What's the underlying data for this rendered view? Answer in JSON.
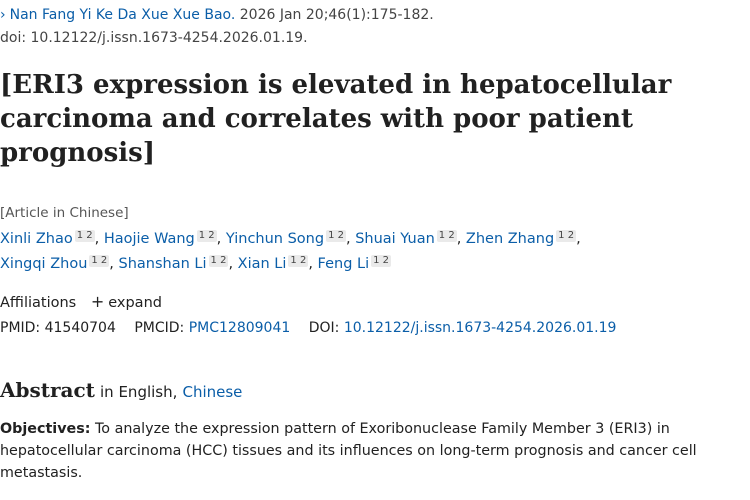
{
  "citation": {
    "journal": "Nan Fang Yi Ke Da Xue Xue Bao.",
    "date_volume": " 2026 Jan 20;46(1):175-182.",
    "doi_line": "doi: 10.12122/j.issn.1673-4254.2026.01.19."
  },
  "title": "[ERI3 expression is elevated in hepatocellular carcinoma and correlates with poor patient prognosis]",
  "article_type": "[Article in Chinese]",
  "authors": [
    {
      "name": "Xinli Zhao",
      "sup": "1 2",
      "sep": ","
    },
    {
      "name": "Haojie Wang",
      "sup": "1 2",
      "sep": ","
    },
    {
      "name": "Yinchun Song",
      "sup": "1 2",
      "sep": ","
    },
    {
      "name": "Shuai Yuan",
      "sup": "1 2",
      "sep": ","
    },
    {
      "name": "Zhen Zhang",
      "sup": "1 2",
      "sep": ","
    },
    {
      "name": "Xingqi Zhou",
      "sup": "1 2",
      "sep": ","
    },
    {
      "name": "Shanshan Li",
      "sup": "1 2",
      "sep": ","
    },
    {
      "name": "Xian Li",
      "sup": "1 2",
      "sep": ","
    },
    {
      "name": "Feng Li",
      "sup": "1 2",
      "sep": ""
    }
  ],
  "affiliations": {
    "label": "Affiliations",
    "expand_label": "expand"
  },
  "identifiers": {
    "pmid_label": "PMID:",
    "pmid": "41540704",
    "pmcid_label": "PMCID:",
    "pmcid": "PMC12809041",
    "doi_label": "DOI:",
    "doi": "10.12122/j.issn.1673-4254.2026.01.19"
  },
  "abstract": {
    "heading": "Abstract",
    "lang_prefix": "in English,",
    "lang_link": "Chinese",
    "objectives_label": "Objectives:",
    "objectives_text": "To analyze the expression pattern of Exoribonuclease Family Member 3 (ERI3) in hepatocellular carcinoma (HCC) tissues and its influences on long-term prognosis and cancer cell metastasis."
  }
}
